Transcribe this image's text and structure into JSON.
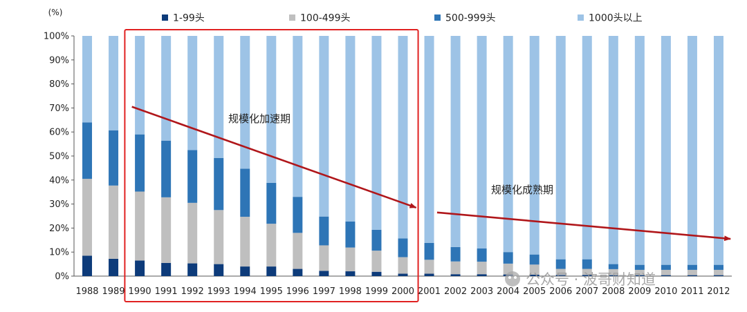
{
  "chart_data": {
    "type": "bar",
    "stacked": true,
    "ylabel": "(%)",
    "ylim": [
      0,
      100
    ],
    "yticks": [
      "0%",
      "10%",
      "20%",
      "30%",
      "40%",
      "50%",
      "60%",
      "70%",
      "80%",
      "90%",
      "100%"
    ],
    "categories": [
      "1988",
      "1989",
      "1990",
      "1991",
      "1992",
      "1993",
      "1994",
      "1995",
      "1996",
      "1997",
      "1998",
      "1999",
      "2000",
      "2001",
      "2002",
      "2003",
      "2004",
      "2005",
      "2006",
      "2007",
      "2008",
      "2009",
      "2010",
      "2011",
      "2012"
    ],
    "series": [
      {
        "name": "1-99头",
        "color": "#0d3b7a",
        "values": [
          8.5,
          7.2,
          6.5,
          5.5,
          5.3,
          5.0,
          4.0,
          4.0,
          3.0,
          2.2,
          2.0,
          1.8,
          1.0,
          1.0,
          0.8,
          0.8,
          0.7,
          0.6,
          0.5,
          0.5,
          0.4,
          0.4,
          0.4,
          0.4,
          0.4
        ]
      },
      {
        "name": "100-499头",
        "color": "#bfbfbf",
        "values": [
          32.0,
          30.5,
          28.7,
          27.3,
          25.2,
          22.5,
          20.7,
          17.8,
          15.0,
          10.6,
          9.9,
          8.8,
          6.9,
          5.8,
          5.3,
          5.2,
          4.5,
          4.2,
          2.5,
          2.5,
          2.5,
          2.2,
          2.2,
          2.2,
          2.2
        ]
      },
      {
        "name": "500-999头",
        "color": "#2e75b6",
        "values": [
          23.5,
          23.0,
          23.8,
          23.6,
          22.0,
          21.7,
          20.0,
          17.0,
          15.0,
          12.0,
          10.8,
          8.7,
          7.8,
          7.0,
          6.0,
          5.5,
          4.8,
          4.2,
          4.0,
          4.0,
          2.1,
          2.1,
          2.1,
          2.1,
          2.1
        ]
      },
      {
        "name": "1000头以上",
        "color": "#9dc3e6",
        "values": [
          36.0,
          39.3,
          41.0,
          43.6,
          47.5,
          50.8,
          55.3,
          61.2,
          67.0,
          75.2,
          77.3,
          80.7,
          84.3,
          86.2,
          87.9,
          88.5,
          90.0,
          91.0,
          93.0,
          93.0,
          95.0,
          95.3,
          95.3,
          95.3,
          95.3
        ]
      }
    ],
    "annotations": [
      {
        "text": "规模化加速期",
        "x_from": "1990",
        "x_to": "2001",
        "y_from": 70.5,
        "y_to": 28.5,
        "x_offset_from": -0.3,
        "x_offset_to": -0.5
      },
      {
        "text": "规模化成熟期",
        "x_from": "2001",
        "x_to": "2012",
        "y_from": 26.5,
        "y_to": 15.5,
        "x_offset_from": 0.3,
        "x_offset_to": 0.45
      }
    ],
    "highlight_box": {
      "from": "1990",
      "to": "2000",
      "color": "#e02020"
    },
    "arrow_color": "#b0161a",
    "watermark": "公众号 · 波哥财知道",
    "grid": false,
    "legend_position": "top"
  }
}
